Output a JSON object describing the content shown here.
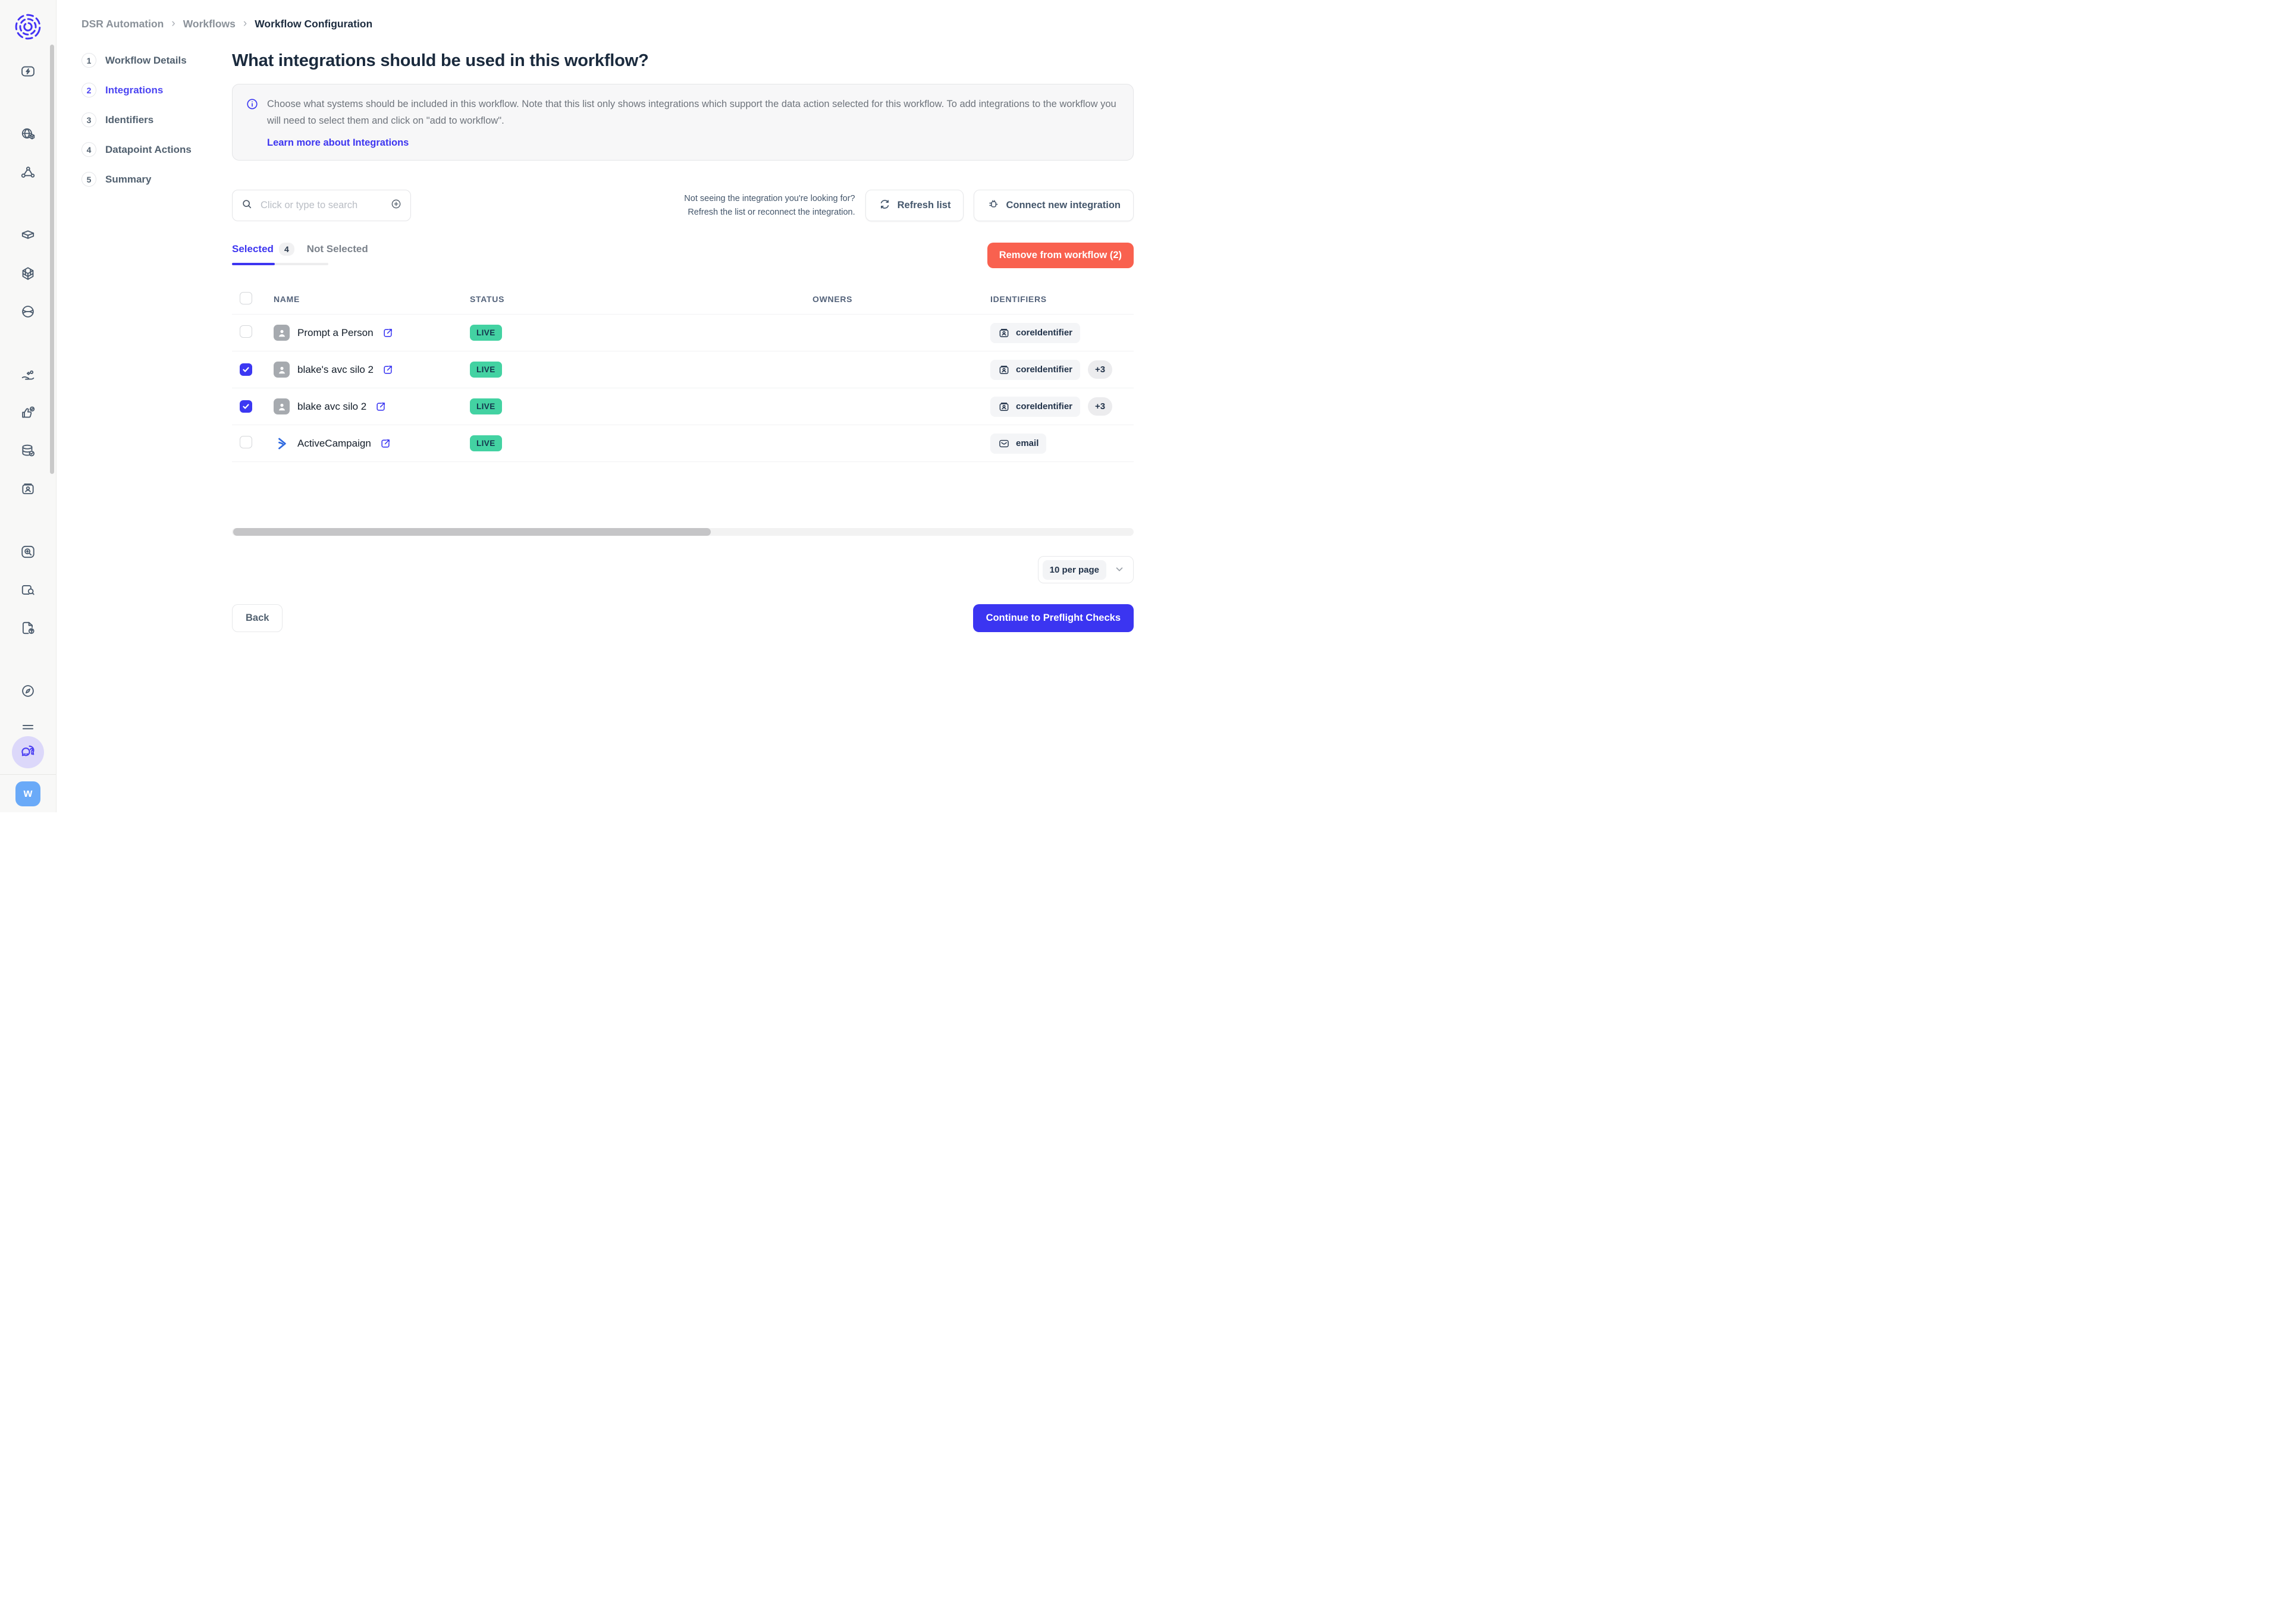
{
  "colors": {
    "accent": "#3d35f0",
    "navy": "#1a2a3d",
    "live_green": "#43d2a2",
    "remove_coral": "#f9614f",
    "sidebar_bg": "#f8f8f7",
    "avatar_blue": "#6aaaf8"
  },
  "breadcrumb": {
    "separator": "›",
    "items": [
      "DSR Automation",
      "Workflows",
      "Workflow Configuration"
    ]
  },
  "stepper": {
    "steps": [
      {
        "num": "1",
        "label": "Workflow Details",
        "active": false
      },
      {
        "num": "2",
        "label": "Integrations",
        "active": true
      },
      {
        "num": "3",
        "label": "Identifiers",
        "active": false
      },
      {
        "num": "4",
        "label": "Datapoint Actions",
        "active": false
      },
      {
        "num": "5",
        "label": "Summary",
        "active": false
      }
    ]
  },
  "page": {
    "title": "What integrations should be used in this workflow?"
  },
  "info": {
    "text": "Choose what systems should be included in this workflow. Note that this list only shows integrations which support the data action selected for this workflow. To add integrations to the workflow you will need to select them and click on \"add to workflow\".",
    "link": "Learn more about Integrations"
  },
  "toolbar": {
    "search_placeholder": "Click or type to search",
    "hint_line1": "Not seeing the integration you're looking for?",
    "hint_line2": "Refresh the list or reconnect the integration.",
    "refresh_label": "Refresh list",
    "connect_label": "Connect new integration"
  },
  "tabs": {
    "selected_label": "Selected",
    "selected_count": "4",
    "not_selected_label": "Not Selected",
    "remove_label": "Remove from workflow (2)"
  },
  "table": {
    "headers": [
      "NAME",
      "STATUS",
      "OWNERS",
      "IDENTIFIERS"
    ],
    "rows": [
      {
        "name": "Prompt a Person",
        "checked": false,
        "icon": "person",
        "status": "LIVE",
        "owners": "",
        "identifiers": [
          {
            "icon": "id-card",
            "label": "coreIdentifier"
          }
        ],
        "extra": ""
      },
      {
        "name": "blake's avc silo 2",
        "checked": true,
        "icon": "person",
        "status": "LIVE",
        "owners": "",
        "identifiers": [
          {
            "icon": "id-card",
            "label": "coreIdentifier"
          }
        ],
        "extra": "+3"
      },
      {
        "name": "blake avc silo 2",
        "checked": true,
        "icon": "person",
        "status": "LIVE",
        "owners": "",
        "identifiers": [
          {
            "icon": "id-card",
            "label": "coreIdentifier"
          }
        ],
        "extra": "+3"
      },
      {
        "name": "ActiveCampaign",
        "checked": false,
        "icon": "activecampaign",
        "status": "LIVE",
        "owners": "",
        "identifiers": [
          {
            "icon": "email",
            "label": "email"
          }
        ],
        "extra": ""
      }
    ]
  },
  "pagination": {
    "per_page": "10 per page"
  },
  "footer": {
    "back_label": "Back",
    "continue_label": "Continue to Preflight Checks"
  },
  "sidebar": {
    "rail": [
      "zap",
      "divider",
      "globe-cube",
      "network-nodes",
      "divider",
      "cube",
      "grid-cube",
      "globe-swoosh",
      "divider",
      "hand-gift",
      "thumbs-up-check",
      "database-check",
      "id-card",
      "divider",
      "search-plus",
      "folder-search",
      "document-question",
      "divider",
      "compass",
      "list-lines"
    ],
    "help_icon": "help-chat",
    "avatar_label": "w"
  }
}
